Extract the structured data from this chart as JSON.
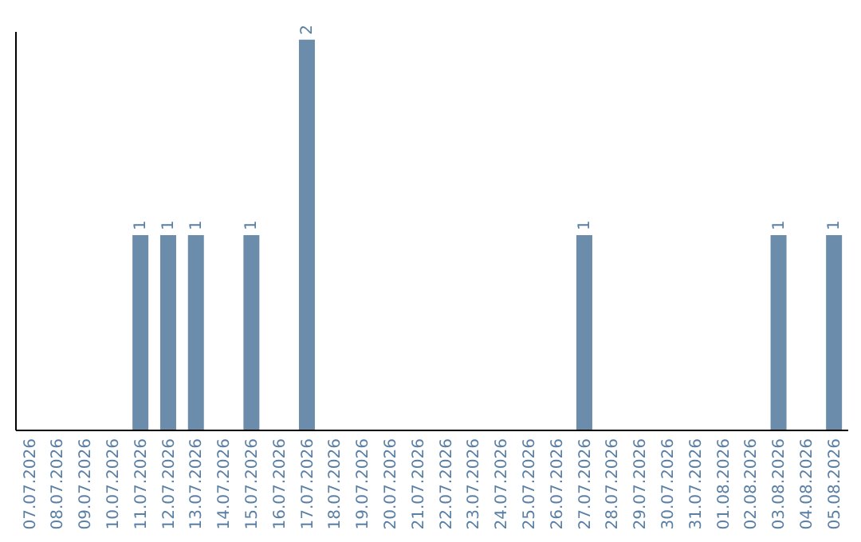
{
  "chart_data": {
    "type": "bar",
    "categories": [
      "07.07.2026",
      "08.07.2026",
      "09.07.2026",
      "10.07.2026",
      "11.07.2026",
      "12.07.2026",
      "13.07.2026",
      "14.07.2026",
      "15.07.2026",
      "16.07.2026",
      "17.07.2026",
      "18.07.2026",
      "19.07.2026",
      "20.07.2026",
      "21.07.2026",
      "22.07.2026",
      "23.07.2026",
      "24.07.2026",
      "25.07.2026",
      "26.07.2026",
      "27.07.2026",
      "28.07.2026",
      "29.07.2026",
      "30.07.2026",
      "31.07.2026",
      "01.08.2026",
      "02.08.2026",
      "03.08.2026",
      "04.08.2026",
      "05.08.2026"
    ],
    "values": [
      0,
      0,
      0,
      0,
      1,
      1,
      1,
      0,
      1,
      0,
      2,
      0,
      0,
      0,
      0,
      0,
      0,
      0,
      0,
      0,
      1,
      0,
      0,
      0,
      0,
      0,
      0,
      1,
      0,
      1
    ],
    "value_labels": [
      null,
      null,
      null,
      null,
      "1",
      "1",
      "1",
      null,
      "1",
      null,
      "2",
      null,
      null,
      null,
      null,
      null,
      null,
      null,
      null,
      null,
      "1",
      null,
      null,
      null,
      null,
      null,
      null,
      "1",
      null,
      "1"
    ],
    "color": "#6b8caa",
    "grid": false,
    "legend": false,
    "tick_labels": "x"
  }
}
